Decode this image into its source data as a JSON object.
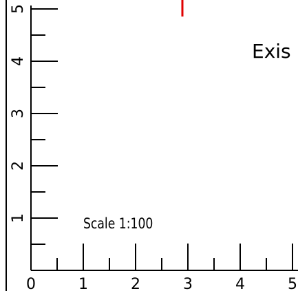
{
  "scale_label": "Scale 1:100",
  "existing_label": "Exis",
  "x_tick_labels": [
    "0",
    "1",
    "2",
    "3",
    "4",
    "5"
  ],
  "y_tick_labels": [
    "1",
    "2",
    "3",
    "4",
    "5"
  ],
  "colors": {
    "axis": "#000000",
    "marker": "#e00000"
  }
}
